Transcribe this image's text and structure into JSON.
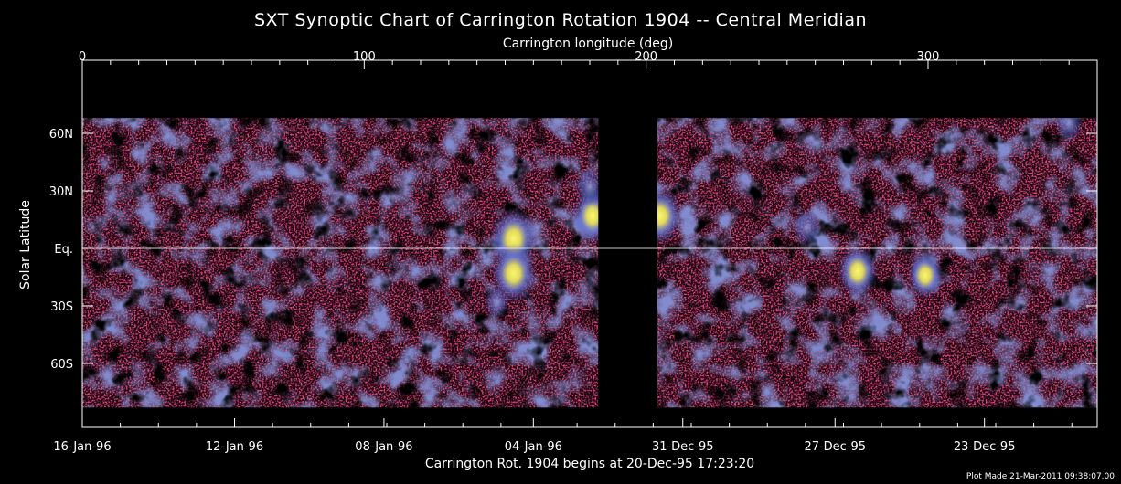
{
  "chart_data": {
    "type": "heatmap",
    "title": "SXT Synoptic Chart of Carrington Rotation 1904 -- Central Meridian",
    "xlabel": "Carrington longitude (deg)",
    "ylabel": "Solar Latitude",
    "bottom_label": "Carrington Rot. 1904 begins at 20-Dec-95 17:23:20",
    "footer": "Plot Made 21-Mar-2011 09:38:07.00",
    "xlim": [
      0,
      360
    ],
    "ylim": [
      -90,
      90
    ],
    "x_ticks": [
      {
        "value": 0,
        "label": "0"
      },
      {
        "value": 100,
        "label": "100"
      },
      {
        "value": 200,
        "label": "200"
      },
      {
        "value": 300,
        "label": "300"
      }
    ],
    "y_ticks": [
      {
        "value": 60,
        "label": "60N"
      },
      {
        "value": 30,
        "label": "30N"
      },
      {
        "value": 0,
        "label": "Eq."
      },
      {
        "value": -30,
        "label": "30S"
      },
      {
        "value": -60,
        "label": "60S"
      }
    ],
    "date_ticks": [
      {
        "lon": 0,
        "label": "16-Jan-96"
      },
      {
        "lon": 54,
        "label": "12-Jan-96"
      },
      {
        "lon": 107,
        "label": "08-Jan-96"
      },
      {
        "lon": 160,
        "label": "04-Jan-96"
      },
      {
        "lon": 213,
        "label": "31-Dec-95"
      },
      {
        "lon": 267,
        "label": "27-Dec-95"
      },
      {
        "lon": 320,
        "label": "23-Dec-95"
      }
    ],
    "data_region": {
      "lat_max": 68,
      "lat_min": -83
    },
    "no_data_gap": {
      "lon_start": 183,
      "lon_end": 204
    },
    "bright_regions": [
      {
        "lon": 153,
        "lat": 5,
        "intensity": 1.0
      },
      {
        "lon": 153,
        "lat": -13,
        "intensity": 0.95
      },
      {
        "lon": 181,
        "lat": 17,
        "intensity": 0.85
      },
      {
        "lon": 205,
        "lat": 17,
        "intensity": 0.9
      },
      {
        "lon": 275,
        "lat": -12,
        "intensity": 0.8
      },
      {
        "lon": 299,
        "lat": -14,
        "intensity": 0.7
      },
      {
        "lon": 257,
        "lat": 11,
        "intensity": 0.45
      },
      {
        "lon": 147,
        "lat": -28,
        "intensity": 0.4
      },
      {
        "lon": 350,
        "lat": 65,
        "intensity": 0.45
      },
      {
        "lon": 180,
        "lat": 32,
        "intensity": 0.5
      }
    ],
    "colors": {
      "background": "#000000",
      "quiet_sun": "#cc1030",
      "diffuse": "#4050b0",
      "active": "#f2f040",
      "axes": "#ffffff"
    }
  }
}
